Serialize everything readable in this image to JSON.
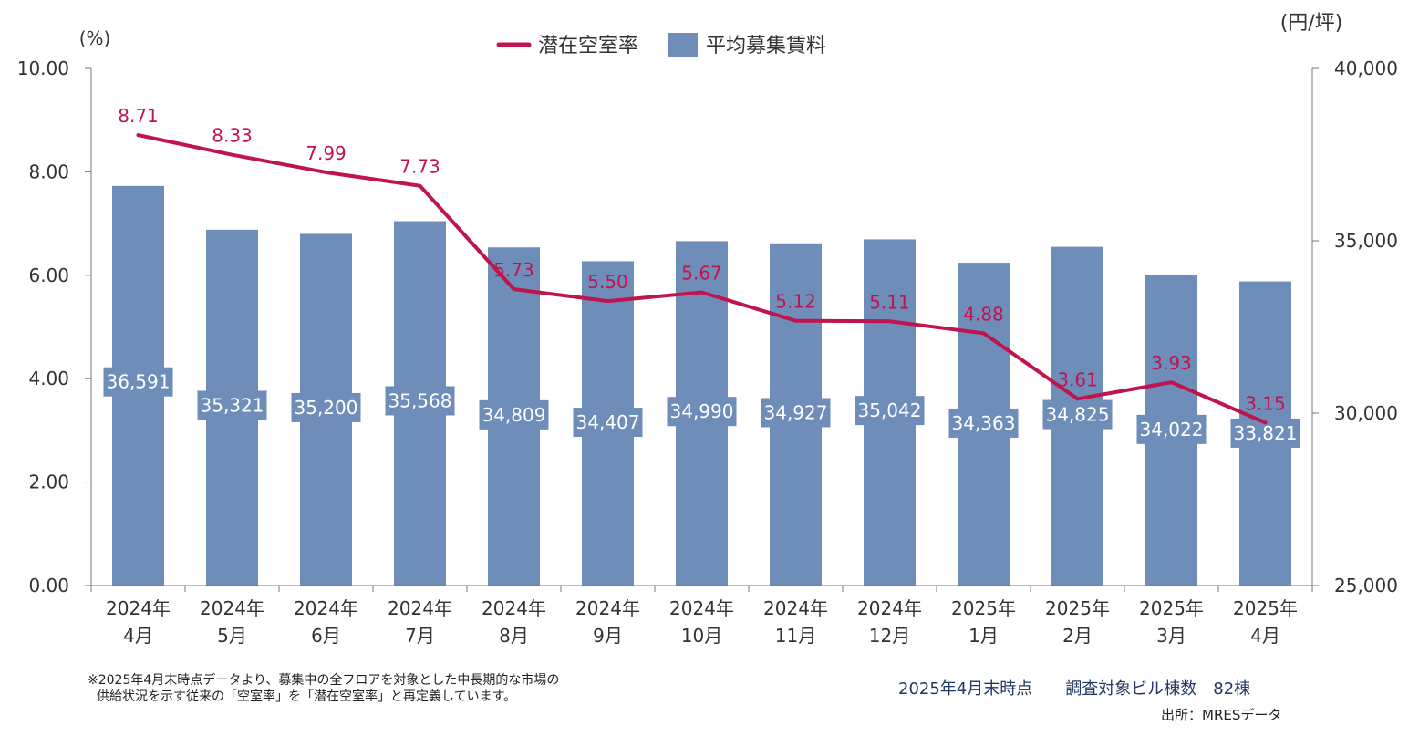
{
  "chart_data": {
    "type": "bar+line",
    "categories": [
      [
        "2024年",
        "4月"
      ],
      [
        "2024年",
        "5月"
      ],
      [
        "2024年",
        "6月"
      ],
      [
        "2024年",
        "7月"
      ],
      [
        "2024年",
        "8月"
      ],
      [
        "2024年",
        "9月"
      ],
      [
        "2024年",
        "10月"
      ],
      [
        "2024年",
        "11月"
      ],
      [
        "2024年",
        "12月"
      ],
      [
        "2025年",
        "1月"
      ],
      [
        "2025年",
        "2月"
      ],
      [
        "2025年",
        "3月"
      ],
      [
        "2025年",
        "4月"
      ]
    ],
    "bar_series": {
      "name": "平均募集賃料",
      "values": [
        36591,
        35321,
        35200,
        35568,
        34809,
        34407,
        34990,
        34927,
        35042,
        34363,
        34825,
        34022,
        33821
      ],
      "labels": [
        "36,591",
        "35,321",
        "35,200",
        "35,568",
        "34,809",
        "34,407",
        "34,990",
        "34,927",
        "35,042",
        "34,363",
        "34,825",
        "34,022",
        "33,821"
      ],
      "color": "#6f8db9",
      "axis": "right"
    },
    "line_series": {
      "name": "潜在空室率",
      "values": [
        8.71,
        8.33,
        7.99,
        7.73,
        5.73,
        5.5,
        5.67,
        5.12,
        5.11,
        4.88,
        3.61,
        3.93,
        3.15
      ],
      "labels": [
        "8.71",
        "8.33",
        "7.99",
        "7.73",
        "5.73",
        "5.50",
        "5.67",
        "5.12",
        "5.11",
        "4.88",
        "3.61",
        "3.93",
        "3.15"
      ],
      "color": "#c0144c",
      "axis": "left"
    },
    "left_axis": {
      "unit": "(%)",
      "min": 0,
      "max": 10,
      "ticks": [
        "0.00",
        "2.00",
        "4.00",
        "6.00",
        "8.00",
        "10.00"
      ]
    },
    "right_axis": {
      "unit": "(円/坪)",
      "min": 25000,
      "max": 40000,
      "ticks": [
        "25,000",
        "30,000",
        "35,000",
        "40,000"
      ]
    },
    "legend": {
      "placement": "top-center"
    },
    "grid": false
  },
  "footer": {
    "note_line1": "※2025年4月末時点データより、募集中の全フロアを対象とした中長期的な市場の",
    "note_line2": "供給状況を示す従来の「空室率」を「潜在空室率」と再定義しています。",
    "survey": "2025年4月末時点　　調査対象ビル棟数　82棟",
    "source": "出所：MRESデータ"
  }
}
